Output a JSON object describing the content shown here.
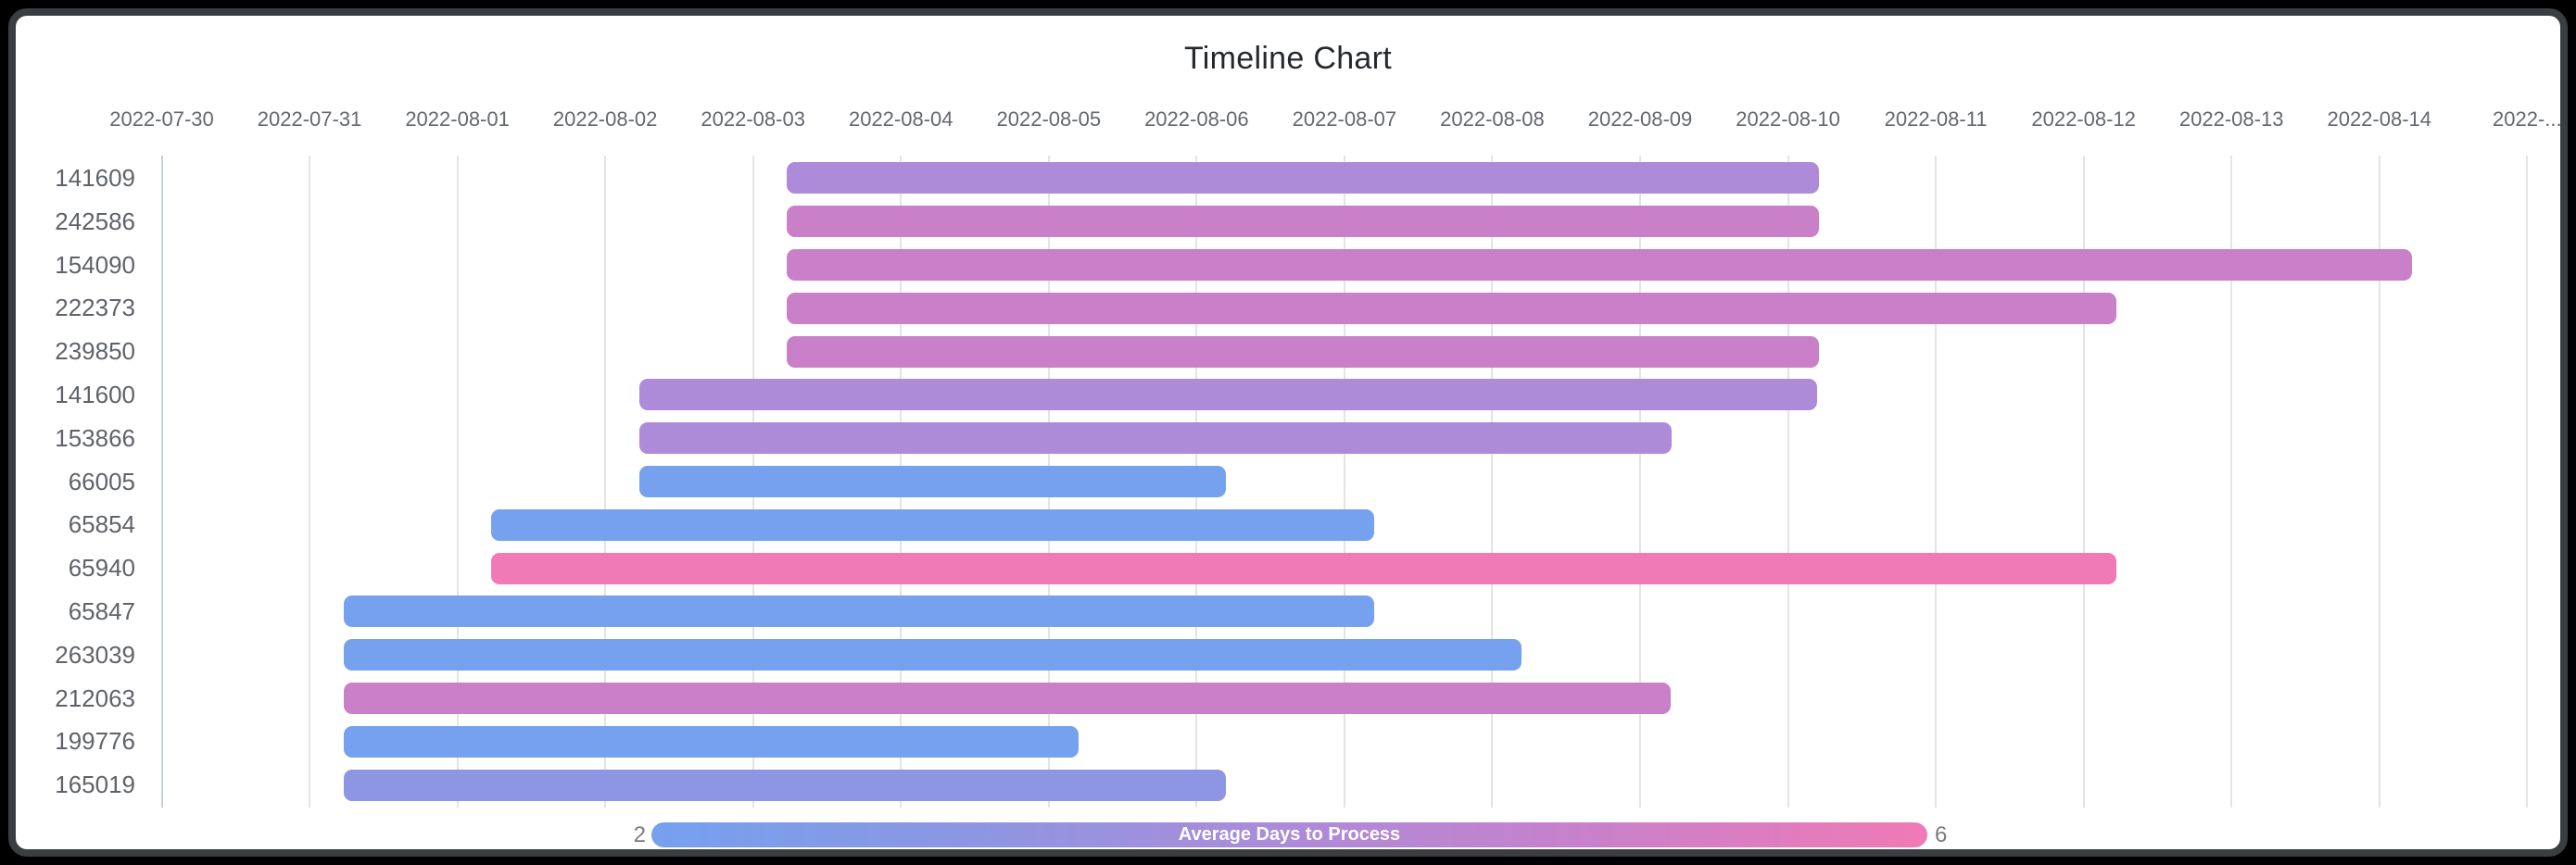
{
  "title": "Timeline Chart",
  "x_axis": {
    "tick_labels": [
      "2022-07-30",
      "2022-07-31",
      "2022-08-01",
      "2022-08-02",
      "2022-08-03",
      "2022-08-04",
      "2022-08-05",
      "2022-08-06",
      "2022-08-07",
      "2022-08-08",
      "2022-08-09",
      "2022-08-10",
      "2022-08-11",
      "2022-08-12",
      "2022-08-13",
      "2022-08-14",
      "2022-..."
    ]
  },
  "legend": {
    "min_label": "2",
    "max_label": "6",
    "title": "Average Days to Process"
  },
  "colors": {
    "frame": "#3a3e42",
    "card_bg": "#ffffff",
    "title_text": "#25292d",
    "axis_text": "#64686d",
    "row_label_text": "#5f6368",
    "baseline_grid": "#c9cfdf",
    "grid": "#e3e4e8",
    "legend_minmax_text": "#7c7c80",
    "legend_title_text": "#ffffff",
    "bar_palette_by_avg_days": {
      "2": "#75a1ee",
      "3": "#8d96e2",
      "4": "#ad8bd9",
      "5": "#ca80c9",
      "6": "#f07ab5"
    }
  },
  "chart_data": {
    "type": "timeline",
    "title": "Timeline Chart",
    "x_range": [
      "2022-07-30",
      "2022-08-15"
    ],
    "value_scale": {
      "label": "Average Days to Process",
      "min": 2,
      "max": 6,
      "low_color": "#75a1ee",
      "high_color": "#f07ab5"
    },
    "grid": true,
    "legend_position": "bottom",
    "rows": [
      {
        "id": "141609",
        "start": "2022-08-03",
        "end": "2022-08-10",
        "duration_days": 7,
        "avg_days_to_process": 4,
        "start_day": 4.23,
        "end_day": 11.21
      },
      {
        "id": "242586",
        "start": "2022-08-03",
        "end": "2022-08-10",
        "duration_days": 7,
        "avg_days_to_process": 5,
        "start_day": 4.23,
        "end_day": 11.21
      },
      {
        "id": "154090",
        "start": "2022-08-03",
        "end": "2022-08-14",
        "duration_days": 11,
        "avg_days_to_process": 5,
        "start_day": 4.23,
        "end_day": 15.22
      },
      {
        "id": "222373",
        "start": "2022-08-03",
        "end": "2022-08-12",
        "duration_days": 9,
        "avg_days_to_process": 5,
        "start_day": 4.23,
        "end_day": 13.22
      },
      {
        "id": "239850",
        "start": "2022-08-03",
        "end": "2022-08-10",
        "duration_days": 7,
        "avg_days_to_process": 5,
        "start_day": 4.23,
        "end_day": 11.21
      },
      {
        "id": "141600",
        "start": "2022-08-02",
        "end": "2022-08-10",
        "duration_days": 8,
        "avg_days_to_process": 4,
        "start_day": 3.23,
        "end_day": 11.2
      },
      {
        "id": "153866",
        "start": "2022-08-02",
        "end": "2022-08-09",
        "duration_days": 7,
        "avg_days_to_process": 4,
        "start_day": 3.23,
        "end_day": 10.21
      },
      {
        "id": "66005",
        "start": "2022-08-02",
        "end": "2022-08-06",
        "duration_days": 4,
        "avg_days_to_process": 2,
        "start_day": 3.23,
        "end_day": 7.2
      },
      {
        "id": "65854",
        "start": "2022-08-01",
        "end": "2022-08-07",
        "duration_days": 6,
        "avg_days_to_process": 2,
        "start_day": 2.23,
        "end_day": 8.2
      },
      {
        "id": "65940",
        "start": "2022-08-01",
        "end": "2022-08-12",
        "duration_days": 11,
        "avg_days_to_process": 6,
        "start_day": 2.23,
        "end_day": 13.22
      },
      {
        "id": "65847",
        "start": "2022-07-31",
        "end": "2022-08-07",
        "duration_days": 7,
        "avg_days_to_process": 2,
        "start_day": 1.23,
        "end_day": 8.2
      },
      {
        "id": "263039",
        "start": "2022-07-31",
        "end": "2022-08-08",
        "duration_days": 8,
        "avg_days_to_process": 2,
        "start_day": 1.23,
        "end_day": 9.2
      },
      {
        "id": "212063",
        "start": "2022-07-31",
        "end": "2022-08-09",
        "duration_days": 9,
        "avg_days_to_process": 5,
        "start_day": 1.23,
        "end_day": 10.21
      },
      {
        "id": "199776",
        "start": "2022-07-31",
        "end": "2022-08-05",
        "duration_days": 5,
        "avg_days_to_process": 2,
        "start_day": 1.23,
        "end_day": 6.2
      },
      {
        "id": "165019",
        "start": "2022-07-31",
        "end": "2022-08-06",
        "duration_days": 6,
        "avg_days_to_process": 3,
        "start_day": 1.23,
        "end_day": 7.2
      }
    ]
  }
}
